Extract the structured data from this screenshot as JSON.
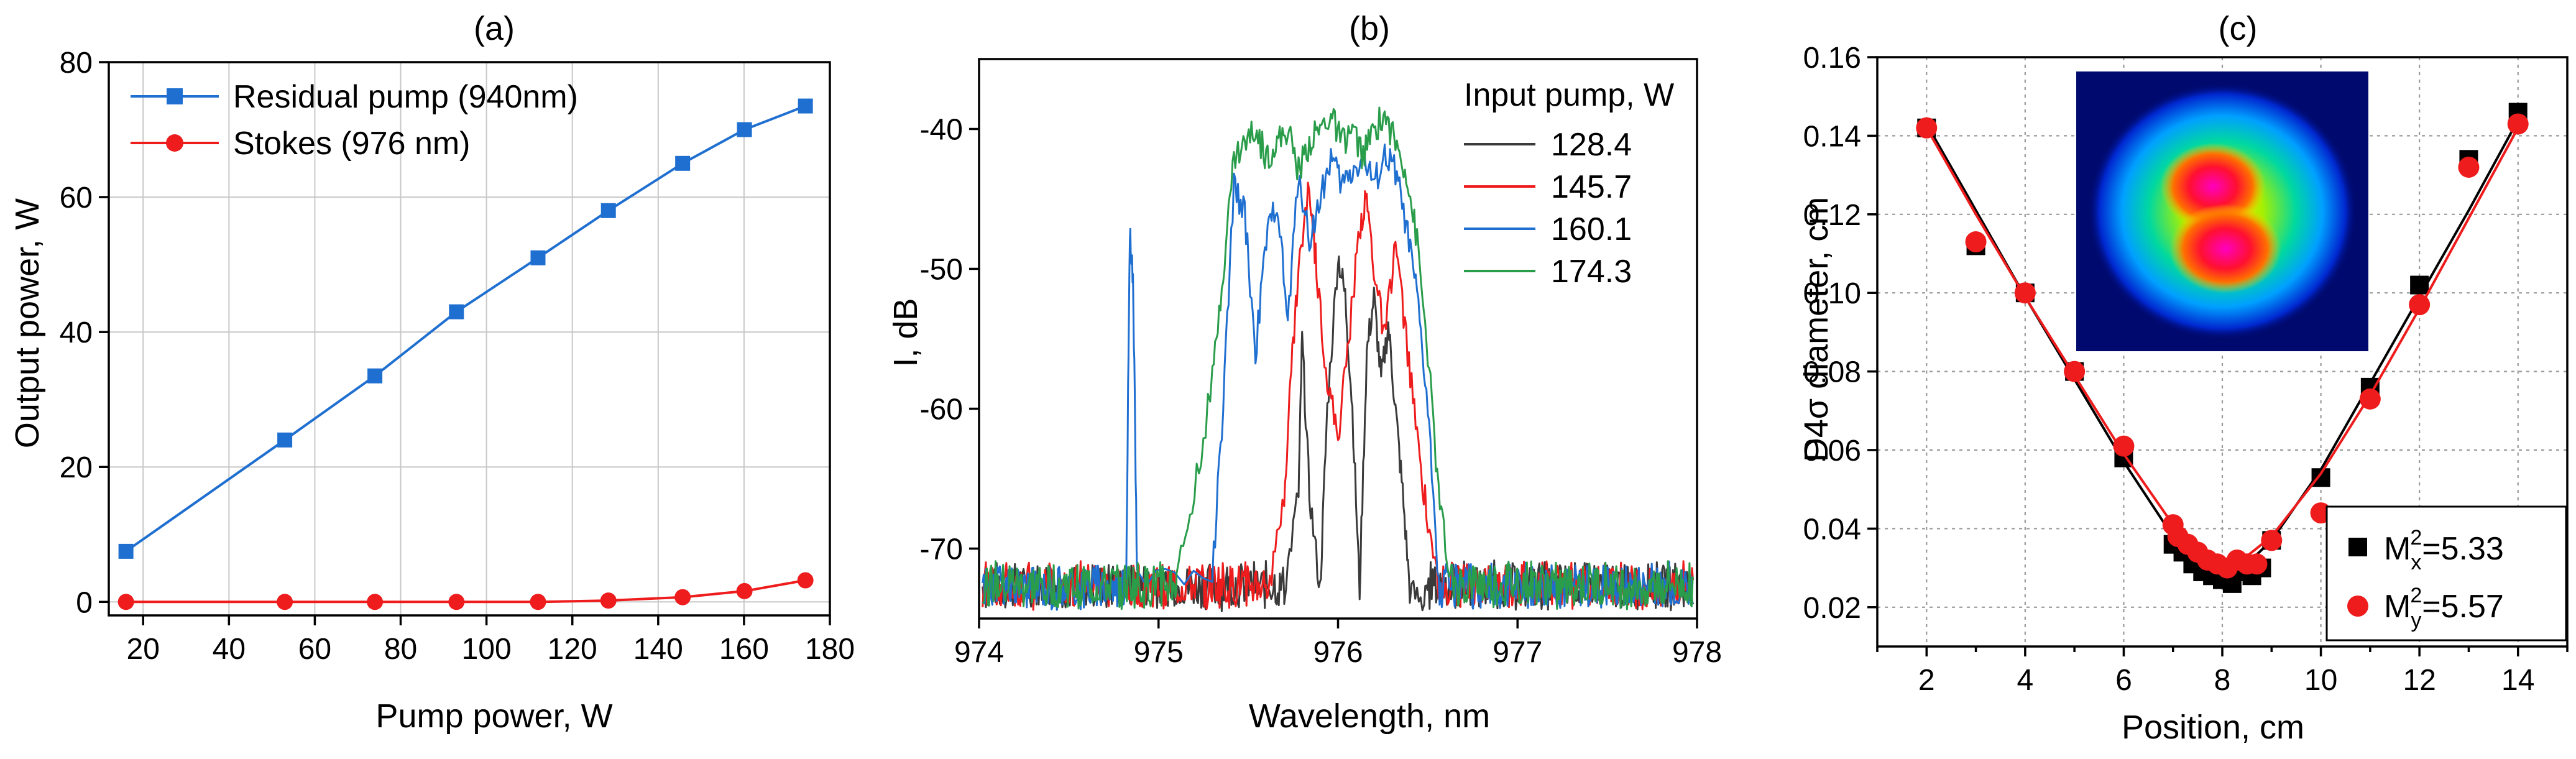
{
  "chart_data": [
    {
      "type": "line",
      "title": "(a)",
      "xlabel": "Pump power, W",
      "ylabel": "Output power, W",
      "xlim": [
        12,
        180
      ],
      "ylim": [
        -2,
        80
      ],
      "xticks": [
        20,
        40,
        60,
        80,
        100,
        120,
        140,
        160,
        180
      ],
      "yticks": [
        0,
        20,
        40,
        60,
        80
      ],
      "grid": true,
      "legend_position": "top-left",
      "series": [
        {
          "name": "Residual pump (940nm)",
          "color": "#1f6fd1",
          "marker": "square",
          "x": [
            16,
            53,
            74,
            93,
            112,
            128.4,
            145.7,
            160.1,
            174.3
          ],
          "y": [
            7.5,
            24,
            33.5,
            43,
            51,
            58,
            65,
            70,
            73.5
          ]
        },
        {
          "name": "Stokes (976 nm)",
          "color": "#ee1c1c",
          "marker": "circle",
          "x": [
            16,
            53,
            74,
            93,
            112,
            128.4,
            145.7,
            160.1,
            174.3
          ],
          "y": [
            0,
            0,
            0,
            0,
            0,
            0.2,
            0.7,
            1.6,
            3.2
          ]
        }
      ]
    },
    {
      "type": "line",
      "title": "(b)",
      "xlabel": "Wavelength, nm",
      "ylabel": "I, dB",
      "xlim": [
        974,
        978
      ],
      "ylim": [
        -75,
        -35
      ],
      "xticks": [
        974,
        975,
        976,
        977,
        978
      ],
      "yticks": [
        -70,
        -60,
        -50,
        -40
      ],
      "grid": false,
      "legend_title": "Input pump, W",
      "legend_position": "top-right",
      "series": [
        {
          "name": "128.4",
          "color": "#3a3a3a",
          "x": [
            975.7,
            975.78,
            975.8,
            975.84,
            975.9,
            975.94,
            976.0,
            976.04,
            976.08,
            976.12,
            976.16,
            976.2,
            976.24,
            976.28,
            976.32,
            976.36,
            976.4,
            976.48
          ],
          "y": [
            -73,
            -66,
            -55,
            -66,
            -73,
            -60,
            -49,
            -52,
            -60,
            -73,
            -56,
            -52,
            -58,
            -54,
            -60,
            -66,
            -73,
            -74
          ]
        },
        {
          "name": "145.7",
          "color": "#ee1c1c",
          "x": [
            975.62,
            975.7,
            975.74,
            975.78,
            975.84,
            975.88,
            975.94,
            976.0,
            976.06,
            976.12,
            976.16,
            976.2,
            976.26,
            976.32,
            976.38,
            976.44,
            976.5,
            976.58
          ],
          "y": [
            -73,
            -66,
            -57,
            -50,
            -44,
            -50,
            -58,
            -62,
            -55,
            -47,
            -45,
            -50,
            -55,
            -48,
            -55,
            -62,
            -68,
            -74
          ]
        },
        {
          "name": "160.1",
          "color": "#1f6fd1",
          "x": [
            974.82,
            974.84,
            974.86,
            974.88,
            975.3,
            975.36,
            975.42,
            975.48,
            975.54,
            975.6,
            975.66,
            975.72,
            975.78,
            975.84,
            975.9,
            975.96,
            976.02,
            976.08,
            976.14,
            976.2,
            976.26,
            976.32,
            976.38,
            976.44,
            976.5,
            976.56
          ],
          "y": [
            -72,
            -47,
            -52,
            -72,
            -72,
            -60,
            -44,
            -46,
            -56,
            -48,
            -45,
            -54,
            -43,
            -48,
            -45,
            -42,
            -44,
            -43,
            -42,
            -44,
            -42,
            -43,
            -47,
            -52,
            -60,
            -72
          ]
        },
        {
          "name": "174.3",
          "color": "#2a9d4b",
          "x": [
            975.1,
            975.2,
            975.3,
            975.36,
            975.42,
            975.48,
            975.54,
            975.6,
            975.66,
            975.72,
            975.78,
            975.84,
            975.9,
            975.96,
            976.02,
            976.08,
            976.14,
            976.2,
            976.26,
            976.32,
            976.38,
            976.44,
            976.5,
            976.56,
            976.62
          ],
          "y": [
            -72,
            -66,
            -58,
            -50,
            -42,
            -41,
            -40,
            -42,
            -41,
            -40,
            -43,
            -41,
            -40,
            -39,
            -41,
            -40,
            -42,
            -40,
            -39,
            -41,
            -43,
            -48,
            -56,
            -66,
            -72
          ]
        }
      ]
    },
    {
      "type": "scatter",
      "title": "(c)",
      "xlabel": "Position, cm",
      "ylabel": "D4σ diameter, cm",
      "xlim": [
        1,
        15
      ],
      "ylim": [
        0.01,
        0.16
      ],
      "xticks": [
        2,
        4,
        6,
        8,
        10,
        12,
        14
      ],
      "yticks": [
        0.02,
        0.04,
        0.06,
        0.08,
        0.1,
        0.12,
        0.14,
        0.16
      ],
      "ytick_labels": [
        "0.02",
        "0.04",
        "0.06",
        "0.08",
        "0.10",
        "0.12",
        "0.14",
        "0.16"
      ],
      "grid": true,
      "legend_position": "bottom-right",
      "series": [
        {
          "name": "M",
          "sub": "x",
          "sup": "2",
          "value_text": "=5.33",
          "color": "#000000",
          "marker": "square",
          "x": [
            2,
            3,
            4,
            5,
            6,
            7,
            7.2,
            7.4,
            7.6,
            7.8,
            8,
            8.2,
            8.4,
            8.6,
            8.8,
            9,
            10,
            11,
            12,
            13,
            14
          ],
          "y": [
            0.142,
            0.112,
            0.1,
            0.08,
            0.058,
            0.036,
            0.034,
            0.031,
            0.029,
            0.028,
            0.027,
            0.026,
            0.029,
            0.028,
            0.03,
            0.037,
            0.053,
            0.076,
            0.102,
            0.134,
            0.146
          ],
          "fit": {
            "x": [
              2,
              3,
              4,
              5,
              6,
              7,
              7.5,
              8,
              8.5,
              9,
              10,
              11,
              12,
              13,
              14
            ],
            "y": [
              0.143,
              0.121,
              0.099,
              0.078,
              0.057,
              0.038,
              0.031,
              0.0285,
              0.031,
              0.037,
              0.055,
              0.077,
              0.099,
              0.121,
              0.144
            ]
          }
        },
        {
          "name": "M",
          "sub": "y",
          "sup": "2",
          "value_text": "=5.57",
          "color": "#ee1c1c",
          "marker": "circle",
          "x": [
            2,
            3,
            4,
            5,
            6,
            7,
            7.1,
            7.3,
            7.5,
            7.7,
            7.9,
            8.1,
            8.3,
            8.5,
            8.7,
            9,
            10,
            11,
            12,
            13,
            14
          ],
          "y": [
            0.142,
            0.113,
            0.1,
            0.08,
            0.061,
            0.041,
            0.038,
            0.036,
            0.034,
            0.032,
            0.031,
            0.03,
            0.032,
            0.031,
            0.031,
            0.037,
            0.044,
            0.073,
            0.097,
            0.132,
            0.143
          ],
          "fit": {
            "x": [
              2,
              3,
              4,
              5,
              6,
              7,
              7.5,
              8,
              8.5,
              9,
              10,
              11,
              12,
              13,
              14
            ],
            "y": [
              0.142,
              0.12,
              0.099,
              0.079,
              0.059,
              0.041,
              0.034,
              0.031,
              0.033,
              0.038,
              0.054,
              0.074,
              0.096,
              0.119,
              0.142
            ]
          }
        }
      ]
    }
  ]
}
